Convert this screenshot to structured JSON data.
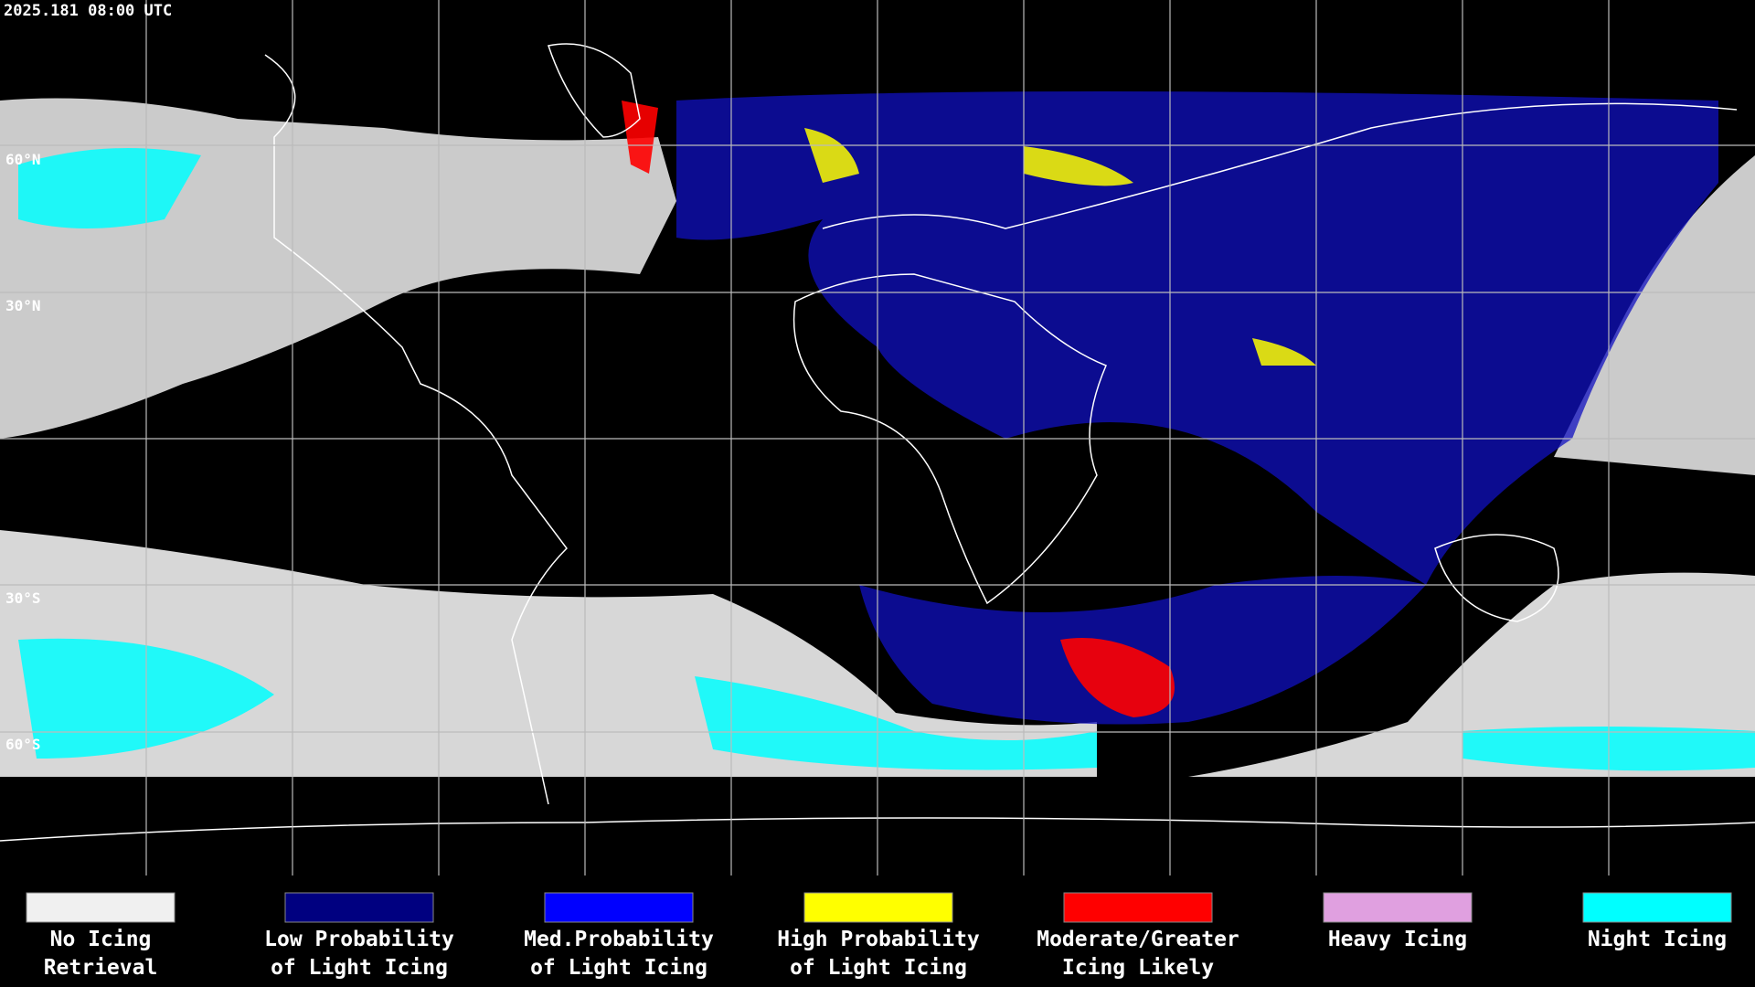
{
  "header": {
    "timestamp": "2025.181 08:00 UTC"
  },
  "latitude_labels": [
    "60°N",
    "30°N",
    "30°S",
    "60°S"
  ],
  "legend": [
    {
      "lines": [
        "No Icing",
        "Retrieval"
      ],
      "color": "#f0f0f0"
    },
    {
      "lines": [
        "Low Probability",
        "of Light Icing"
      ],
      "color": "#000080"
    },
    {
      "lines": [
        "Med.Probability",
        "of Light Icing"
      ],
      "color": "#0000ff"
    },
    {
      "lines": [
        "High Probability",
        "of Light Icing"
      ],
      "color": "#ffff00"
    },
    {
      "lines": [
        "Moderate/Greater",
        "Icing Likely"
      ],
      "color": "#ff0000"
    },
    {
      "lines": [
        "Heavy Icing"
      ],
      "color": "#e0a0e0"
    },
    {
      "lines": [
        "Night Icing"
      ],
      "color": "#00ffff"
    }
  ]
}
